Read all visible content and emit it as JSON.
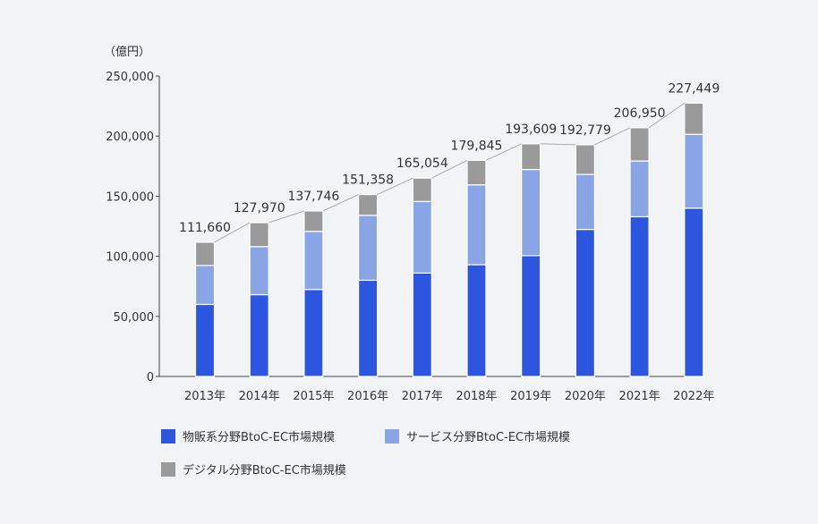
{
  "chart_data": {
    "type": "bar",
    "stacked": true,
    "unit_label": "（億円）",
    "categories": [
      "2013年",
      "2014年",
      "2015年",
      "2016年",
      "2017年",
      "2018年",
      "2019年",
      "2020年",
      "2021年",
      "2022年"
    ],
    "series": [
      {
        "name": "物販系分野BtoC-EC市場規模",
        "color": "#2c56e0",
        "values": [
          59931,
          68043,
          72398,
          80043,
          86008,
          92992,
          100515,
          122333,
          132865,
          139997
        ]
      },
      {
        "name": "サービス分野BtoC-EC市場規模",
        "color": "#8aa5e6",
        "values": [
          32396,
          40004,
          48357,
          54054,
          59568,
          66471,
          71672,
          45832,
          46424,
          61477
        ]
      },
      {
        "name": "デジタル分野BtoC-EC市場規模",
        "color": "#9a9a9a",
        "values": [
          19333,
          19923,
          16991,
          17261,
          19478,
          20382,
          21422,
          24614,
          27661,
          25975
        ]
      }
    ],
    "totals": [
      "111,660",
      "127,970",
      "137,746",
      "151,358",
      "165,054",
      "179,845",
      "193,609",
      "192,779",
      "206,950",
      "227,449"
    ],
    "ylim": [
      0,
      250000
    ],
    "yticks": [
      "0",
      "50,000",
      "100,000",
      "150,000",
      "200,000",
      "250,000"
    ],
    "ytick_values": [
      0,
      50000,
      100000,
      150000,
      200000,
      250000
    ],
    "grid": false,
    "total_line": true,
    "legend_position": "bottom"
  }
}
